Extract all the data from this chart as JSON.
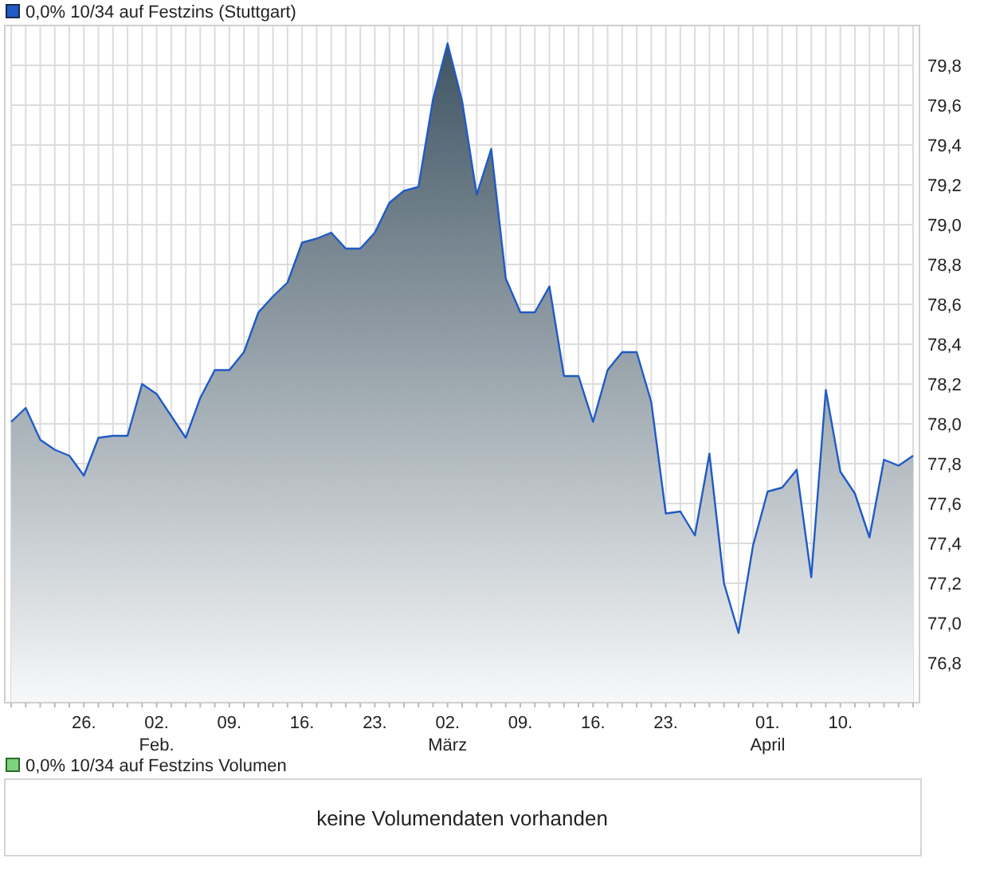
{
  "chart_data": [
    {
      "type": "area",
      "categories": [
        null,
        null,
        null,
        null,
        null,
        "26.",
        null,
        null,
        null,
        null,
        "02.\nFeb.",
        null,
        null,
        null,
        null,
        "09.",
        null,
        null,
        null,
        null,
        "16.",
        null,
        null,
        null,
        null,
        "23.",
        null,
        null,
        null,
        null,
        "02.\nMärz",
        null,
        null,
        null,
        null,
        "09.",
        null,
        null,
        null,
        null,
        "16.",
        null,
        null,
        null,
        null,
        "23.",
        null,
        null,
        null,
        null,
        null,
        null,
        "01.\nApril",
        null,
        null,
        null,
        null,
        "10.",
        null,
        null,
        null,
        null,
        null
      ],
      "series": [
        {
          "name": "0,0% 10/34 auf Festzins (Stuttgart)",
          "color": "#1f5bc6",
          "values": [
            78.01,
            78.08,
            77.92,
            77.87,
            77.84,
            77.74,
            77.93,
            77.94,
            77.94,
            78.2,
            78.15,
            78.04,
            77.93,
            78.13,
            78.27,
            78.27,
            78.36,
            78.56,
            78.64,
            78.71,
            78.91,
            78.93,
            78.96,
            78.88,
            78.88,
            78.96,
            79.11,
            79.17,
            79.19,
            79.63,
            79.91,
            79.62,
            79.15,
            79.38,
            78.73,
            78.56,
            78.56,
            78.69,
            78.24,
            78.24,
            78.01,
            78.27,
            78.36,
            78.36,
            78.11,
            77.55,
            77.56,
            77.44,
            77.85,
            77.2,
            76.95,
            77.39,
            77.66,
            77.68,
            77.77,
            77.23,
            78.17,
            77.76,
            77.65,
            77.43,
            77.82,
            77.79,
            77.84
          ]
        }
      ],
      "ylim": [
        76.6,
        80.0
      ],
      "yticks": [
        {
          "value": 76.8,
          "label": "76,8"
        },
        {
          "value": 77.0,
          "label": "77,0"
        },
        {
          "value": 77.2,
          "label": "77,2"
        },
        {
          "value": 77.4,
          "label": "77,4"
        },
        {
          "value": 77.6,
          "label": "77,6"
        },
        {
          "value": 77.8,
          "label": "77,8"
        },
        {
          "value": 78.0,
          "label": "78,0"
        },
        {
          "value": 78.2,
          "label": "78,2"
        },
        {
          "value": 78.4,
          "label": "78,4"
        },
        {
          "value": 78.6,
          "label": "78,6"
        },
        {
          "value": 78.8,
          "label": "78,8"
        },
        {
          "value": 79.0,
          "label": "79,0"
        },
        {
          "value": 79.2,
          "label": "79,2"
        },
        {
          "value": 79.4,
          "label": "79,4"
        },
        {
          "value": 79.6,
          "label": "79,6"
        },
        {
          "value": 79.8,
          "label": "79,8"
        }
      ],
      "grid": true,
      "legend": "top left"
    },
    {
      "type": "other",
      "title": "0,0% 10/34 auf Festzins Volumen",
      "annotations": [
        "keine Volumendaten vorhanden"
      ]
    }
  ]
}
